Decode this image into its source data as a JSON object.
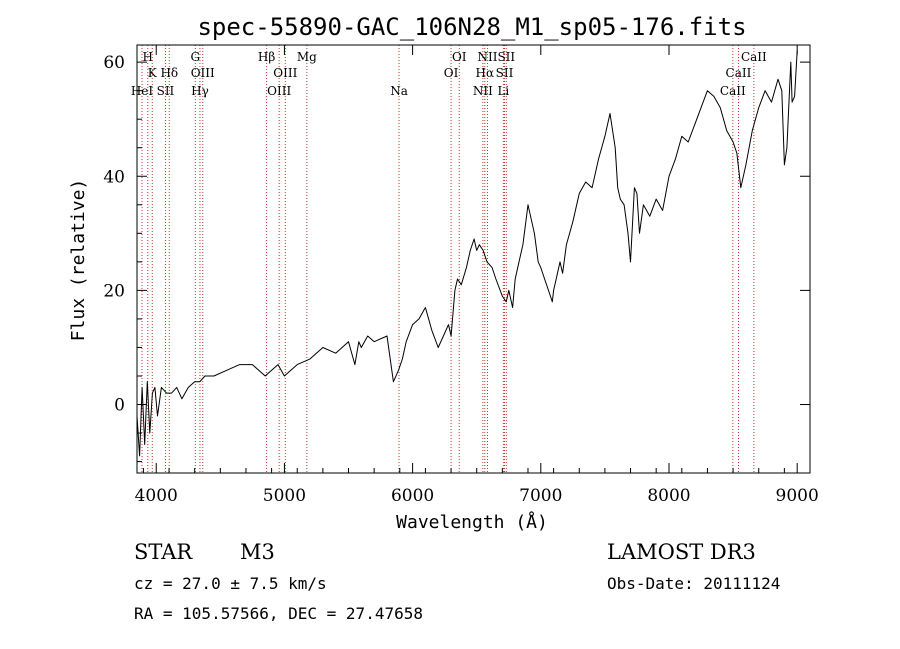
{
  "chart_data": {
    "type": "line",
    "title": "spec-55890-GAC_106N28_M1_sp05-176.fits",
    "xlabel": "Wavelength (Å)",
    "ylabel": "Flux (relative)",
    "xlim": [
      3850,
      9100
    ],
    "ylim": [
      -12,
      63
    ],
    "xticks": [
      4000,
      5000,
      6000,
      7000,
      8000,
      9000
    ],
    "yticks": [
      0,
      20,
      40,
      60
    ],
    "xtick_labels": [
      "4000",
      "5000",
      "6000",
      "7000",
      "8000",
      "9000"
    ],
    "ytick_labels": [
      "0",
      "20",
      "40",
      "60"
    ],
    "grid": false,
    "series": [
      {
        "name": "spectrum",
        "color": "#000000",
        "x": [
          3850,
          3870,
          3890,
          3910,
          3930,
          3950,
          3970,
          3990,
          4010,
          4040,
          4080,
          4120,
          4160,
          4200,
          4250,
          4300,
          4340,
          4380,
          4450,
          4550,
          4650,
          4750,
          4850,
          4900,
          4950,
          5000,
          5100,
          5200,
          5300,
          5400,
          5500,
          5550,
          5580,
          5600,
          5650,
          5700,
          5800,
          5850,
          5890,
          5920,
          5950,
          6000,
          6050,
          6100,
          6150,
          6200,
          6240,
          6280,
          6300,
          6330,
          6350,
          6380,
          6420,
          6450,
          6480,
          6500,
          6520,
          6550,
          6580,
          6620,
          6650,
          6700,
          6730,
          6750,
          6780,
          6800,
          6830,
          6860,
          6900,
          6950,
          6980,
          7000,
          7030,
          7060,
          7090,
          7100,
          7120,
          7150,
          7170,
          7200,
          7250,
          7300,
          7350,
          7400,
          7450,
          7500,
          7540,
          7560,
          7580,
          7600,
          7620,
          7650,
          7680,
          7700,
          7730,
          7750,
          7770,
          7800,
          7850,
          7900,
          7950,
          8000,
          8050,
          8100,
          8150,
          8200,
          8250,
          8300,
          8350,
          8400,
          8450,
          8500,
          8530,
          8560,
          8600,
          8650,
          8700,
          8750,
          8800,
          8850,
          8880,
          8900,
          8920,
          8950,
          8960,
          8980,
          8990,
          9000
        ],
        "y": [
          -2,
          -9,
          3,
          -7,
          4,
          -5,
          2,
          3,
          -2,
          3,
          2,
          2,
          3,
          1,
          3,
          4,
          4,
          5,
          5,
          6,
          7,
          7,
          5,
          6,
          7,
          5,
          7,
          8,
          10,
          9,
          11,
          7,
          11,
          10,
          12,
          11,
          12,
          4,
          6,
          8,
          11,
          14,
          15,
          17,
          13,
          10,
          12,
          14,
          12,
          20,
          22,
          21,
          24,
          27,
          29,
          27,
          28,
          27,
          25,
          24,
          22,
          19,
          18,
          20,
          17,
          22,
          25,
          28,
          35,
          30,
          25,
          24,
          22,
          20,
          18,
          20,
          22,
          25,
          23,
          28,
          32,
          37,
          39,
          38,
          43,
          47,
          51,
          48,
          45,
          38,
          36,
          35,
          30,
          25,
          38,
          37,
          30,
          35,
          33,
          36,
          34,
          40,
          43,
          47,
          46,
          49,
          52,
          55,
          54,
          52,
          48,
          46,
          44,
          38,
          42,
          48,
          52,
          55,
          53,
          57,
          55,
          42,
          45,
          60,
          53,
          54,
          58,
          62
        ]
      }
    ],
    "emission_lines": [
      {
        "label": "H",
        "x": 3934,
        "row": 1
      },
      {
        "label": "K",
        "x": 3969,
        "row": 2
      },
      {
        "label": "HeI",
        "x": 3889,
        "row": 3
      },
      {
        "label": "SII",
        "x": 4072,
        "row": 3
      },
      {
        "label": "Hδ",
        "x": 4102,
        "row": 2
      },
      {
        "label": "G",
        "x": 4305,
        "row": 1
      },
      {
        "label": "OIII",
        "x": 4363,
        "row": 2
      },
      {
        "label": "Hγ",
        "x": 4341,
        "row": 3
      },
      {
        "label": "Hβ",
        "x": 4861,
        "row": 1
      },
      {
        "label": "OIII",
        "x": 4959,
        "row": 3
      },
      {
        "label": "OIII",
        "x": 5007,
        "row": 2
      },
      {
        "label": "Mg",
        "x": 5175,
        "row": 1
      },
      {
        "label": "Na",
        "x": 5894,
        "row": 3
      },
      {
        "label": "OI",
        "x": 6300,
        "row": 2
      },
      {
        "label": "OI",
        "x": 6364,
        "row": 1
      },
      {
        "label": "NII",
        "x": 6548,
        "row": 3
      },
      {
        "label": "Hα",
        "x": 6563,
        "row": 2
      },
      {
        "label": "NII",
        "x": 6584,
        "row": 1
      },
      {
        "label": "SII",
        "x": 6717,
        "row": 2
      },
      {
        "label": "Li",
        "x": 6708,
        "row": 3
      },
      {
        "label": "SII",
        "x": 6731,
        "row": 1
      },
      {
        "label": "CaII",
        "x": 8498,
        "row": 3
      },
      {
        "label": "CaII",
        "x": 8542,
        "row": 2
      },
      {
        "label": "CaII",
        "x": 8662,
        "row": 1
      }
    ]
  },
  "info": {
    "class": "STAR",
    "subclass": "M3",
    "survey": "LAMOST DR3",
    "redshift": "cz = 27.0 ± 7.5 km/s",
    "obs_date": "Obs-Date: 20111124",
    "coords": "RA = 105.57566, DEC =  27.47658"
  },
  "colors": {
    "axis": "#000000",
    "line_marker": "#c0392b"
  }
}
